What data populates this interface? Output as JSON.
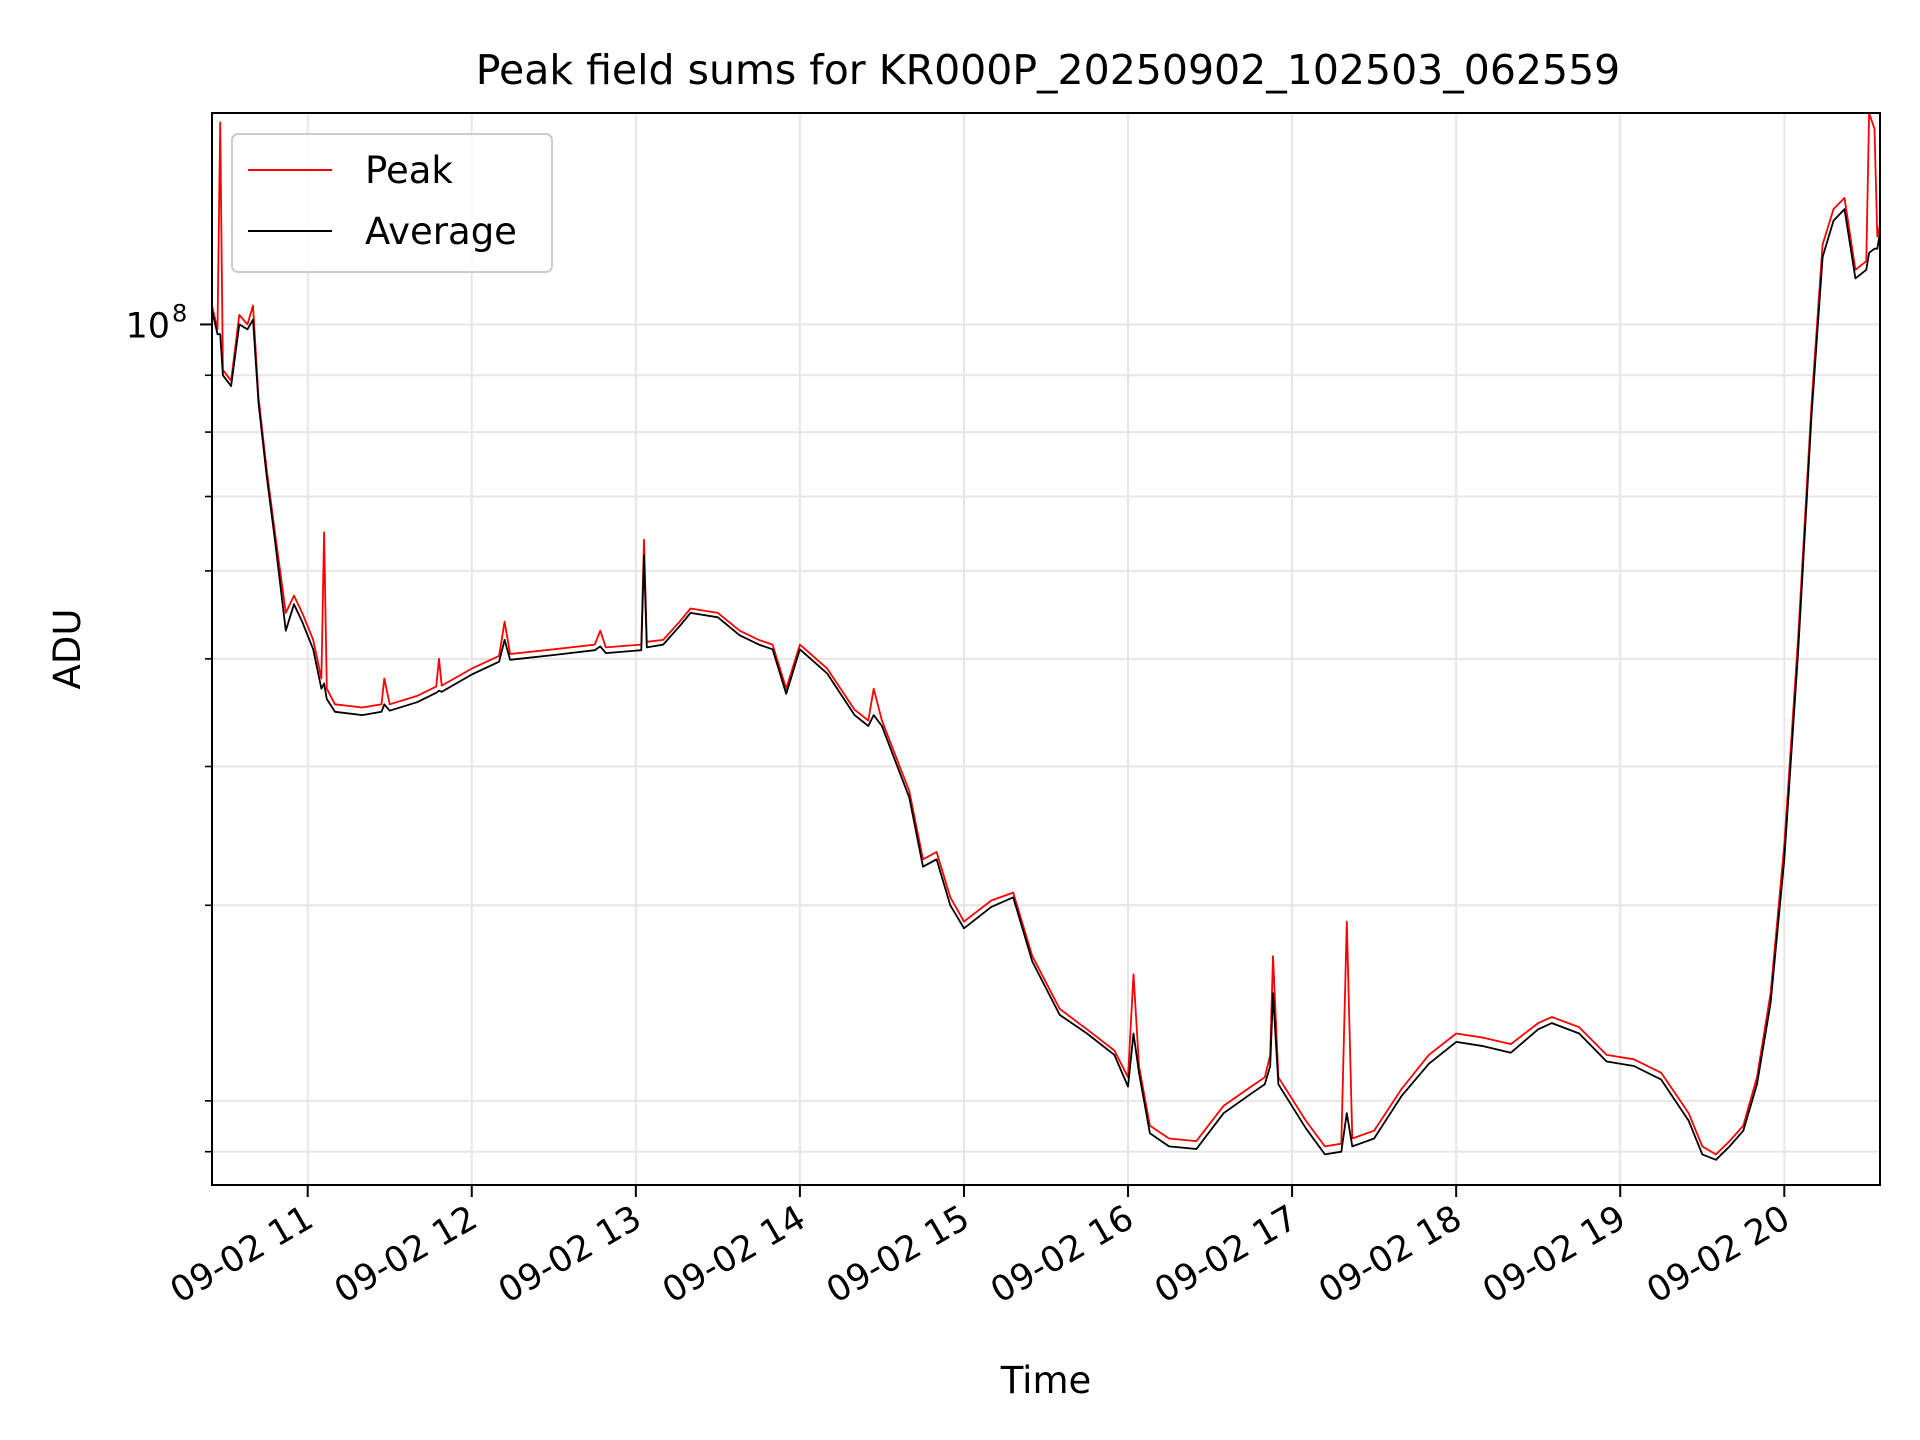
{
  "chart_data": {
    "type": "line",
    "title": "Peak field sums for KR000P_20250902_102503_062559",
    "xlabel": "Time",
    "ylabel": "ADU",
    "x_axis": "time",
    "y_scale": "log",
    "grid": true,
    "legend_position": "top-left",
    "xlim": [
      "2025-09-02 10:25",
      "2025-09-02 20:35"
    ],
    "ylim": [
      16800000,
      155000000
    ],
    "xticks": [
      {
        "value": "2025-09-02 11:00",
        "label": "09-02 11"
      },
      {
        "value": "2025-09-02 12:00",
        "label": "09-02 12"
      },
      {
        "value": "2025-09-02 13:00",
        "label": "09-02 13"
      },
      {
        "value": "2025-09-02 14:00",
        "label": "09-02 14"
      },
      {
        "value": "2025-09-02 15:00",
        "label": "09-02 15"
      },
      {
        "value": "2025-09-02 16:00",
        "label": "09-02 16"
      },
      {
        "value": "2025-09-02 17:00",
        "label": "09-02 17"
      },
      {
        "value": "2025-09-02 18:00",
        "label": "09-02 18"
      },
      {
        "value": "2025-09-02 19:00",
        "label": "09-02 19"
      },
      {
        "value": "2025-09-02 20:00",
        "label": "09-02 20"
      }
    ],
    "yticks_major": [
      {
        "value": 100000000,
        "label": "10",
        "exponent": "8"
      }
    ],
    "yticks_minor": [
      18000000,
      20000000,
      30000000,
      40000000,
      50000000,
      60000000,
      70000000,
      80000000,
      90000000
    ],
    "series": [
      {
        "name": "Peak",
        "color": "#ff0000",
        "points": [
          [
            "2025-09-02 10:25",
            104000000
          ],
          [
            "2025-09-02 10:27",
            99000000
          ],
          [
            "2025-09-02 10:28",
            152000000
          ],
          [
            "2025-09-02 10:29",
            91000000
          ],
          [
            "2025-09-02 10:32",
            89000000
          ],
          [
            "2025-09-02 10:35",
            102000000
          ],
          [
            "2025-09-02 10:38",
            100000000
          ],
          [
            "2025-09-02 10:40",
            104000000
          ],
          [
            "2025-09-02 10:42",
            86000000
          ],
          [
            "2025-09-02 10:45",
            74000000
          ],
          [
            "2025-09-02 10:48",
            65000000
          ],
          [
            "2025-09-02 10:52",
            55000000
          ],
          [
            "2025-09-02 10:55",
            57000000
          ],
          [
            "2025-09-02 10:58",
            55000000
          ],
          [
            "2025-09-02 11:02",
            52000000
          ],
          [
            "2025-09-02 11:05",
            48000000
          ],
          [
            "2025-09-02 11:06",
            65000000
          ],
          [
            "2025-09-02 11:07",
            47000000
          ],
          [
            "2025-09-02 11:10",
            45500000
          ],
          [
            "2025-09-02 11:20",
            45200000
          ],
          [
            "2025-09-02 11:27",
            45500000
          ],
          [
            "2025-09-02 11:28",
            48000000
          ],
          [
            "2025-09-02 11:30",
            45500000
          ],
          [
            "2025-09-02 11:40",
            46300000
          ],
          [
            "2025-09-02 11:47",
            47200000
          ],
          [
            "2025-09-02 11:48",
            50000000
          ],
          [
            "2025-09-02 11:49",
            47300000
          ],
          [
            "2025-09-02 12:00",
            49000000
          ],
          [
            "2025-09-02 12:10",
            50300000
          ],
          [
            "2025-09-02 12:12",
            54000000
          ],
          [
            "2025-09-02 12:14",
            50500000
          ],
          [
            "2025-09-02 12:30",
            51000000
          ],
          [
            "2025-09-02 12:45",
            51500000
          ],
          [
            "2025-09-02 12:47",
            53000000
          ],
          [
            "2025-09-02 12:49",
            51200000
          ],
          [
            "2025-09-02 13:02",
            51500000
          ],
          [
            "2025-09-02 13:03",
            64000000
          ],
          [
            "2025-09-02 13:04",
            51800000
          ],
          [
            "2025-09-02 13:10",
            52000000
          ],
          [
            "2025-09-02 13:16",
            54000000
          ],
          [
            "2025-09-02 13:20",
            55500000
          ],
          [
            "2025-09-02 13:30",
            55000000
          ],
          [
            "2025-09-02 13:38",
            53000000
          ],
          [
            "2025-09-02 13:45",
            52000000
          ],
          [
            "2025-09-02 13:50",
            51500000
          ],
          [
            "2025-09-02 13:55",
            47000000
          ],
          [
            "2025-09-02 14:00",
            51500000
          ],
          [
            "2025-09-02 14:10",
            49000000
          ],
          [
            "2025-09-02 14:20",
            45000000
          ],
          [
            "2025-09-02 14:25",
            44000000
          ],
          [
            "2025-09-02 14:27",
            47000000
          ],
          [
            "2025-09-02 14:30",
            44000000
          ],
          [
            "2025-09-02 14:40",
            38000000
          ],
          [
            "2025-09-02 14:45",
            33000000
          ],
          [
            "2025-09-02 14:50",
            33500000
          ],
          [
            "2025-09-02 14:55",
            30500000
          ],
          [
            "2025-09-02 15:00",
            29000000
          ],
          [
            "2025-09-02 15:10",
            30300000
          ],
          [
            "2025-09-02 15:18",
            30800000
          ],
          [
            "2025-09-02 15:25",
            27000000
          ],
          [
            "2025-09-02 15:35",
            24200000
          ],
          [
            "2025-09-02 15:45",
            23200000
          ],
          [
            "2025-09-02 15:55",
            22200000
          ],
          [
            "2025-09-02 16:00",
            21000000
          ],
          [
            "2025-09-02 16:02",
            26000000
          ],
          [
            "2025-09-02 16:04",
            21500000
          ],
          [
            "2025-09-02 16:08",
            19000000
          ],
          [
            "2025-09-02 16:15",
            18500000
          ],
          [
            "2025-09-02 16:25",
            18400000
          ],
          [
            "2025-09-02 16:35",
            19800000
          ],
          [
            "2025-09-02 16:45",
            20600000
          ],
          [
            "2025-09-02 16:50",
            21000000
          ],
          [
            "2025-09-02 16:52",
            22000000
          ],
          [
            "2025-09-02 16:53",
            27000000
          ],
          [
            "2025-09-02 16:55",
            21000000
          ],
          [
            "2025-09-02 17:05",
            19200000
          ],
          [
            "2025-09-02 17:12",
            18200000
          ],
          [
            "2025-09-02 17:18",
            18300000
          ],
          [
            "2025-09-02 17:20",
            29000000
          ],
          [
            "2025-09-02 17:22",
            18500000
          ],
          [
            "2025-09-02 17:30",
            18800000
          ],
          [
            "2025-09-02 17:40",
            20500000
          ],
          [
            "2025-09-02 17:50",
            22000000
          ],
          [
            "2025-09-02 18:00",
            23000000
          ],
          [
            "2025-09-02 18:10",
            22800000
          ],
          [
            "2025-09-02 18:20",
            22500000
          ],
          [
            "2025-09-02 18:30",
            23500000
          ],
          [
            "2025-09-02 18:35",
            23800000
          ],
          [
            "2025-09-02 18:45",
            23300000
          ],
          [
            "2025-09-02 18:55",
            22000000
          ],
          [
            "2025-09-02 19:05",
            21800000
          ],
          [
            "2025-09-02 19:15",
            21200000
          ],
          [
            "2025-09-02 19:25",
            19500000
          ],
          [
            "2025-09-02 19:30",
            18200000
          ],
          [
            "2025-09-02 19:35",
            17900000
          ],
          [
            "2025-09-02 19:40",
            18400000
          ],
          [
            "2025-09-02 19:45",
            19000000
          ],
          [
            "2025-09-02 19:50",
            21000000
          ],
          [
            "2025-09-02 19:55",
            25000000
          ],
          [
            "2025-09-02 20:00",
            34000000
          ],
          [
            "2025-09-02 20:05",
            52000000
          ],
          [
            "2025-09-02 20:10",
            85000000
          ],
          [
            "2025-09-02 20:14",
            118000000
          ],
          [
            "2025-09-02 20:18",
            127000000
          ],
          [
            "2025-09-02 20:22",
            130000000
          ],
          [
            "2025-09-02 20:26",
            112000000
          ],
          [
            "2025-09-02 20:30",
            114000000
          ],
          [
            "2025-09-02 20:31",
            155000000
          ],
          [
            "2025-09-02 20:33",
            150000000
          ],
          [
            "2025-09-02 20:34",
            120000000
          ],
          [
            "2025-09-02 20:35",
            123000000
          ]
        ]
      },
      {
        "name": "Average",
        "color": "#000000",
        "points": [
          [
            "2025-09-02 10:25",
            103000000
          ],
          [
            "2025-09-02 10:27",
            98000000
          ],
          [
            "2025-09-02 10:28",
            98000000
          ],
          [
            "2025-09-02 10:29",
            90000000
          ],
          [
            "2025-09-02 10:32",
            88000000
          ],
          [
            "2025-09-02 10:35",
            100000000
          ],
          [
            "2025-09-02 10:38",
            99000000
          ],
          [
            "2025-09-02 10:40",
            101000000
          ],
          [
            "2025-09-02 10:42",
            85000000
          ],
          [
            "2025-09-02 10:45",
            73000000
          ],
          [
            "2025-09-02 10:48",
            64000000
          ],
          [
            "2025-09-02 10:52",
            53000000
          ],
          [
            "2025-09-02 10:55",
            56000000
          ],
          [
            "2025-09-02 10:58",
            54000000
          ],
          [
            "2025-09-02 11:02",
            51000000
          ],
          [
            "2025-09-02 11:05",
            47000000
          ],
          [
            "2025-09-02 11:06",
            47500000
          ],
          [
            "2025-09-02 11:07",
            46000000
          ],
          [
            "2025-09-02 11:10",
            44800000
          ],
          [
            "2025-09-02 11:20",
            44500000
          ],
          [
            "2025-09-02 11:27",
            44800000
          ],
          [
            "2025-09-02 11:28",
            45500000
          ],
          [
            "2025-09-02 11:30",
            44900000
          ],
          [
            "2025-09-02 11:40",
            45700000
          ],
          [
            "2025-09-02 11:47",
            46600000
          ],
          [
            "2025-09-02 11:48",
            46800000
          ],
          [
            "2025-09-02 11:49",
            46700000
          ],
          [
            "2025-09-02 12:00",
            48400000
          ],
          [
            "2025-09-02 12:10",
            49700000
          ],
          [
            "2025-09-02 12:12",
            52000000
          ],
          [
            "2025-09-02 12:14",
            49900000
          ],
          [
            "2025-09-02 12:30",
            50400000
          ],
          [
            "2025-09-02 12:45",
            50900000
          ],
          [
            "2025-09-02 12:47",
            51300000
          ],
          [
            "2025-09-02 12:49",
            50600000
          ],
          [
            "2025-09-02 13:02",
            50900000
          ],
          [
            "2025-09-02 13:03",
            62000000
          ],
          [
            "2025-09-02 13:04",
            51200000
          ],
          [
            "2025-09-02 13:10",
            51500000
          ],
          [
            "2025-09-02 13:16",
            53500000
          ],
          [
            "2025-09-02 13:20",
            55000000
          ],
          [
            "2025-09-02 13:30",
            54500000
          ],
          [
            "2025-09-02 13:38",
            52500000
          ],
          [
            "2025-09-02 13:45",
            51500000
          ],
          [
            "2025-09-02 13:50",
            51000000
          ],
          [
            "2025-09-02 13:55",
            46500000
          ],
          [
            "2025-09-02 14:00",
            51000000
          ],
          [
            "2025-09-02 14:10",
            48500000
          ],
          [
            "2025-09-02 14:20",
            44500000
          ],
          [
            "2025-09-02 14:25",
            43500000
          ],
          [
            "2025-09-02 14:27",
            44500000
          ],
          [
            "2025-09-02 14:30",
            43500000
          ],
          [
            "2025-09-02 14:40",
            37500000
          ],
          [
            "2025-09-02 14:45",
            32500000
          ],
          [
            "2025-09-02 14:50",
            33000000
          ],
          [
            "2025-09-02 14:55",
            30000000
          ],
          [
            "2025-09-02 15:00",
            28600000
          ],
          [
            "2025-09-02 15:10",
            29900000
          ],
          [
            "2025-09-02 15:18",
            30500000
          ],
          [
            "2025-09-02 15:25",
            26700000
          ],
          [
            "2025-09-02 15:35",
            23900000
          ],
          [
            "2025-09-02 15:45",
            23000000
          ],
          [
            "2025-09-02 15:55",
            22000000
          ],
          [
            "2025-09-02 16:00",
            20600000
          ],
          [
            "2025-09-02 16:02",
            23000000
          ],
          [
            "2025-09-02 16:04",
            21200000
          ],
          [
            "2025-09-02 16:08",
            18700000
          ],
          [
            "2025-09-02 16:15",
            18200000
          ],
          [
            "2025-09-02 16:25",
            18100000
          ],
          [
            "2025-09-02 16:35",
            19500000
          ],
          [
            "2025-09-02 16:45",
            20300000
          ],
          [
            "2025-09-02 16:50",
            20700000
          ],
          [
            "2025-09-02 16:52",
            21500000
          ],
          [
            "2025-09-02 16:53",
            25000000
          ],
          [
            "2025-09-02 16:55",
            20700000
          ],
          [
            "2025-09-02 17:05",
            18900000
          ],
          [
            "2025-09-02 17:12",
            17900000
          ],
          [
            "2025-09-02 17:18",
            18000000
          ],
          [
            "2025-09-02 17:20",
            19500000
          ],
          [
            "2025-09-02 17:22",
            18200000
          ],
          [
            "2025-09-02 17:30",
            18500000
          ],
          [
            "2025-09-02 17:40",
            20200000
          ],
          [
            "2025-09-02 17:50",
            21600000
          ],
          [
            "2025-09-02 18:00",
            22600000
          ],
          [
            "2025-09-02 18:10",
            22400000
          ],
          [
            "2025-09-02 18:20",
            22100000
          ],
          [
            "2025-09-02 18:30",
            23200000
          ],
          [
            "2025-09-02 18:35",
            23500000
          ],
          [
            "2025-09-02 18:45",
            23000000
          ],
          [
            "2025-09-02 18:55",
            21700000
          ],
          [
            "2025-09-02 19:05",
            21500000
          ],
          [
            "2025-09-02 19:15",
            20900000
          ],
          [
            "2025-09-02 19:25",
            19200000
          ],
          [
            "2025-09-02 19:30",
            17900000
          ],
          [
            "2025-09-02 19:35",
            17700000
          ],
          [
            "2025-09-02 19:40",
            18200000
          ],
          [
            "2025-09-02 19:45",
            18800000
          ],
          [
            "2025-09-02 19:50",
            20700000
          ],
          [
            "2025-09-02 19:55",
            24500000
          ],
          [
            "2025-09-02 20:00",
            33000000
          ],
          [
            "2025-09-02 20:05",
            50500000
          ],
          [
            "2025-09-02 20:10",
            83000000
          ],
          [
            "2025-09-02 20:14",
            115000000
          ],
          [
            "2025-09-02 20:18",
            124000000
          ],
          [
            "2025-09-02 20:22",
            127000000
          ],
          [
            "2025-09-02 20:26",
            110000000
          ],
          [
            "2025-09-02 20:30",
            112000000
          ],
          [
            "2025-09-02 20:31",
            116000000
          ],
          [
            "2025-09-02 20:33",
            117000000
          ],
          [
            "2025-09-02 20:34",
            117000000
          ],
          [
            "2025-09-02 20:35",
            121000000
          ]
        ]
      }
    ]
  }
}
